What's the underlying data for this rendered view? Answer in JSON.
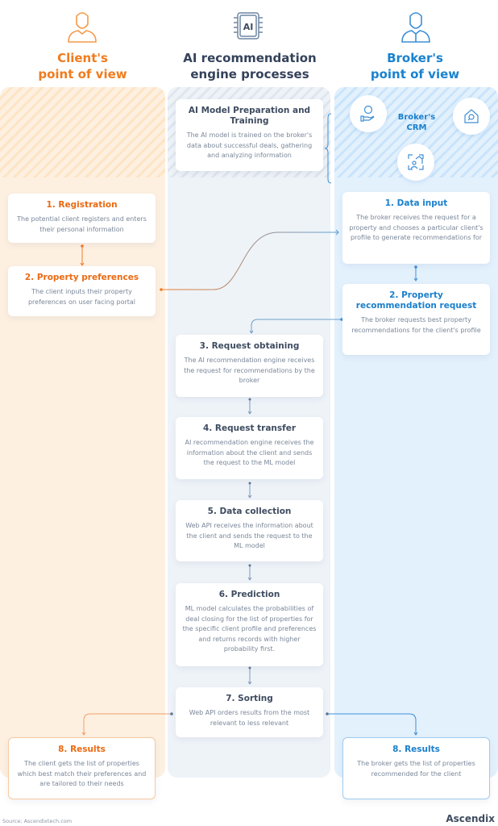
{
  "columns": {
    "client": {
      "title_line1": "Client's",
      "title_line2": "point of view",
      "icon": "person-icon",
      "color": "#f07b1e"
    },
    "ai": {
      "title_line1": "AI recommendation",
      "title_line2": "engine processes",
      "icon": "ai-chip-icon",
      "color": "#3e4c60",
      "chip_label": "AI"
    },
    "broker": {
      "title_line1": "Broker's",
      "title_line2": "point of view",
      "icon": "businessman-icon",
      "color": "#1a82cf"
    }
  },
  "crm": {
    "label_line1": "Broker's",
    "label_line2": "CRM",
    "icons": [
      "money-hand-icon",
      "house-search-icon",
      "house-person-icon"
    ]
  },
  "client_steps": [
    {
      "title": "1. Registration",
      "text": "The potential client registers and enters their personal information"
    },
    {
      "title": "2. Property preferences",
      "text": "The client inputs their property preferences on user facing portal"
    },
    {
      "title": "8. Results",
      "text": "The client gets the list of properties which best match their preferences and are tailored to their needs"
    }
  ],
  "ai_steps": [
    {
      "title": "AI Model Preparation and Training",
      "text": "The AI model is trained on the broker's data about successful deals, gathering and analyzing information"
    },
    {
      "title": "3. Request obtaining",
      "text": "The AI recommendation engine receives the request for recommendations by the broker"
    },
    {
      "title": "4. Request transfer",
      "text": "AI recommendation engine receives the information about the client and sends the request to the ML model"
    },
    {
      "title": "5. Data collection",
      "text": "Web API receives the information about the client  and sends the request to the ML model"
    },
    {
      "title": "6. Prediction",
      "text": "ML model calculates the probabilities of deal closing for the list of properties for the specific client profile and preferences and returns records with higher probability first."
    },
    {
      "title": "7. Sorting",
      "text": "Web API orders results from the most relevant to less relevant"
    }
  ],
  "broker_steps": [
    {
      "title": "1. Data input",
      "text": "The broker receives the request for a property and chooses a particular client's profile to generate recommendations for"
    },
    {
      "title": "2. Property recommendation request",
      "text": "The broker requests best property recommendations for the client's profile"
    },
    {
      "title": "8. Results",
      "text": "The broker gets the list of properties recommended for the client"
    }
  ],
  "footer": {
    "source": "Source: Ascendixtech.com",
    "brand": "Ascendix"
  }
}
